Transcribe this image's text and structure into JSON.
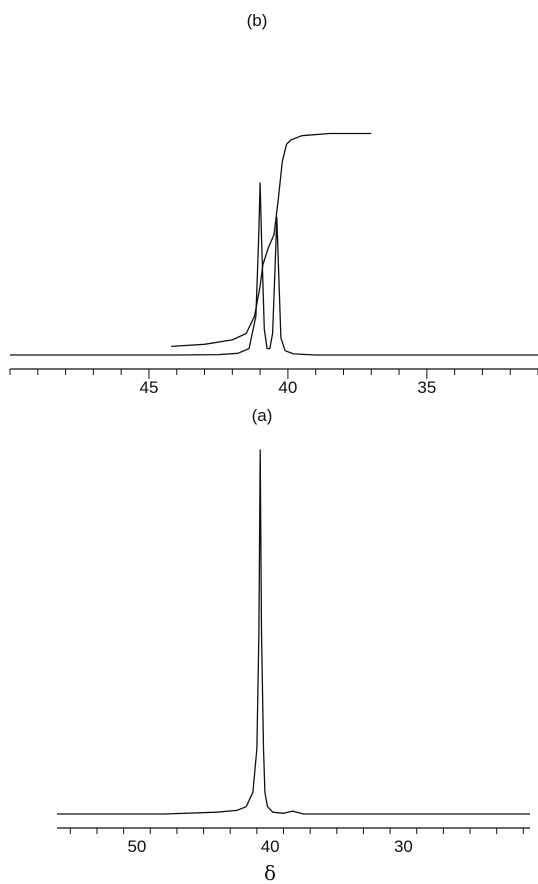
{
  "chart_data": [
    {
      "panel": "(b)",
      "type": "line",
      "xlabel": "",
      "ylabel": "",
      "xlim": [
        50,
        31
      ],
      "ylim": [
        0,
        1
      ],
      "x_ticks": [
        45,
        40,
        35
      ],
      "x_tick_labels": [
        "45",
        "40",
        "35"
      ],
      "grid": false,
      "series": [
        {
          "role": "spectrum",
          "x": [
            50.0,
            48.0,
            46.0,
            44.0,
            42.5,
            41.8,
            41.4,
            41.15,
            41.05,
            41.0,
            40.95,
            40.85,
            40.75,
            40.65,
            40.55,
            40.45,
            40.4,
            40.35,
            40.25,
            40.1,
            39.8,
            39.0,
            37.0,
            35.0,
            33.0,
            31.0
          ],
          "y": [
            0.0,
            0.0,
            0.0,
            0.0,
            0.002,
            0.008,
            0.03,
            0.18,
            0.55,
            0.8,
            0.55,
            0.12,
            0.03,
            0.03,
            0.1,
            0.45,
            0.64,
            0.45,
            0.08,
            0.02,
            0.005,
            0.0,
            0.0,
            0.0,
            0.0,
            0.0
          ]
        },
        {
          "role": "integral",
          "x": [
            44.2,
            43.0,
            42.0,
            41.5,
            41.2,
            41.0,
            40.9,
            40.7,
            40.5,
            40.35,
            40.2,
            40.05,
            39.9,
            39.5,
            38.5,
            37.0
          ],
          "y": [
            0.04,
            0.05,
            0.07,
            0.1,
            0.18,
            0.32,
            0.42,
            0.5,
            0.56,
            0.72,
            0.9,
            0.98,
            1.0,
            1.02,
            1.03,
            1.03
          ]
        }
      ]
    },
    {
      "panel": "(a)",
      "type": "line",
      "xlabel": "δ",
      "ylabel": "",
      "xlim": [
        56,
        20.5
      ],
      "ylim": [
        0,
        1
      ],
      "x_ticks": [
        50,
        40,
        30
      ],
      "x_tick_labels": [
        "50",
        "40",
        "30"
      ],
      "grid": false,
      "series": [
        {
          "role": "spectrum",
          "x": [
            56.0,
            52.0,
            48.0,
            44.0,
            42.5,
            41.8,
            41.3,
            41.0,
            40.85,
            40.75,
            40.65,
            40.5,
            40.4,
            40.2,
            39.8,
            39.0,
            38.3,
            37.5,
            34.0,
            30.0,
            26.0,
            20.5
          ],
          "y": [
            0.0,
            0.0,
            0.0,
            0.005,
            0.01,
            0.02,
            0.06,
            0.18,
            0.5,
            1.0,
            0.5,
            0.18,
            0.06,
            0.02,
            0.005,
            0.002,
            0.008,
            0.0,
            0.0,
            0.0,
            0.0,
            0.0
          ]
        }
      ]
    }
  ]
}
